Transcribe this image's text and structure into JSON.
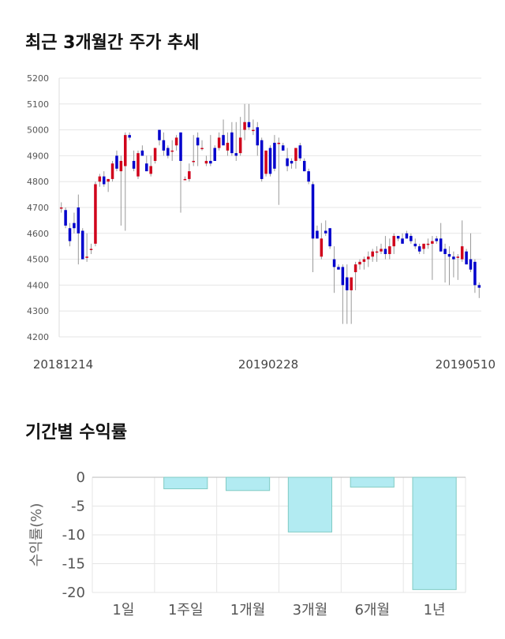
{
  "section1": {
    "title": "최근 3개월간 주가 추세"
  },
  "section2": {
    "title": "기간별 수익률"
  },
  "chart_data": [
    {
      "type": "candlestick",
      "ylim": [
        4200,
        5200
      ],
      "yticks": [
        4200,
        4300,
        4400,
        4500,
        4600,
        4700,
        4800,
        4900,
        5000,
        5100,
        5200
      ],
      "xtick_labels": [
        "20181214",
        "20190228",
        "20190510"
      ],
      "grid": true,
      "colors": {
        "up": "#d0021b",
        "down": "#0000cc",
        "wick": "#999999"
      },
      "candles": [
        [
          4700,
          4720,
          4680,
          4700
        ],
        [
          4690,
          4700,
          4620,
          4630
        ],
        [
          4620,
          4640,
          4550,
          4570
        ],
        [
          4640,
          4680,
          4600,
          4620
        ],
        [
          4700,
          4750,
          4480,
          4600
        ],
        [
          4610,
          4620,
          4500,
          4500
        ],
        [
          4510,
          4600,
          4490,
          4510
        ],
        [
          4540,
          4560,
          4520,
          4540
        ],
        [
          4560,
          4800,
          4550,
          4790
        ],
        [
          4800,
          4830,
          4780,
          4820
        ],
        [
          4820,
          4840,
          4780,
          4790
        ],
        [
          4800,
          4810,
          4760,
          4810
        ],
        [
          4810,
          4880,
          4800,
          4870
        ],
        [
          4900,
          4920,
          4840,
          4850
        ],
        [
          4840,
          4900,
          4630,
          4880
        ],
        [
          4860,
          4990,
          4610,
          4980
        ],
        [
          4980,
          4990,
          4960,
          4970
        ],
        [
          4880,
          4920,
          4840,
          4850
        ],
        [
          4820,
          4920,
          4810,
          4910
        ],
        [
          4920,
          4940,
          4900,
          4900
        ],
        [
          4870,
          4900,
          4840,
          4840
        ],
        [
          4830,
          4900,
          4820,
          4860
        ],
        [
          4880,
          4930,
          4870,
          4930
        ],
        [
          5000,
          5000,
          4940,
          4960
        ],
        [
          4960,
          4990,
          4900,
          4920
        ],
        [
          4930,
          4940,
          4890,
          4900
        ],
        [
          4920,
          4960,
          4880,
          4920
        ],
        [
          4940,
          4980,
          4920,
          4970
        ],
        [
          4990,
          4990,
          4680,
          4880
        ],
        [
          4810,
          4820,
          4810,
          4810
        ],
        [
          4810,
          4870,
          4800,
          4840
        ],
        [
          4880,
          4980,
          4860,
          4880
        ],
        [
          4970,
          4990,
          4860,
          4940
        ],
        [
          4930,
          4960,
          4920,
          4930
        ],
        [
          4870,
          4900,
          4860,
          4880
        ],
        [
          4880,
          4980,
          4860,
          4870
        ],
        [
          4930,
          4940,
          4880,
          4880
        ],
        [
          4930,
          4990,
          4920,
          4970
        ],
        [
          4980,
          5040,
          4950,
          4940
        ],
        [
          4920,
          4990,
          4900,
          4950
        ],
        [
          4990,
          5030,
          4900,
          4910
        ],
        [
          4910,
          5030,
          4880,
          4900
        ],
        [
          4910,
          5050,
          4900,
          4970
        ],
        [
          5000,
          5100,
          4960,
          5030
        ],
        [
          5030,
          5100,
          5000,
          5010
        ],
        [
          5000,
          5040,
          4980,
          5000
        ],
        [
          5010,
          5030,
          4900,
          4940
        ],
        [
          4960,
          4970,
          4800,
          4810
        ],
        [
          4830,
          4910,
          4820,
          4920
        ],
        [
          4930,
          4940,
          4820,
          4830
        ],
        [
          4950,
          4980,
          4840,
          4850
        ],
        [
          4950,
          4970,
          4710,
          4950
        ],
        [
          4940,
          4950,
          4920,
          4920
        ],
        [
          4890,
          4930,
          4840,
          4860
        ],
        [
          4880,
          4890,
          4850,
          4870
        ],
        [
          4880,
          4920,
          4850,
          4930
        ],
        [
          4940,
          4950,
          4880,
          4890
        ],
        [
          4880,
          4890,
          4840,
          4840
        ],
        [
          4840,
          4850,
          4790,
          4800
        ],
        [
          4790,
          4800,
          4450,
          4580
        ],
        [
          4610,
          4630,
          4580,
          4580
        ],
        [
          4510,
          4640,
          4500,
          4580
        ],
        [
          4610,
          4650,
          4590,
          4600
        ],
        [
          4620,
          4620,
          4540,
          4550
        ],
        [
          4500,
          4550,
          4370,
          4470
        ],
        [
          4470,
          4480,
          4460,
          4460
        ],
        [
          4470,
          4480,
          4250,
          4400
        ],
        [
          4430,
          4480,
          4250,
          4380
        ],
        [
          4380,
          4420,
          4250,
          4430
        ],
        [
          4450,
          4490,
          4380,
          4480
        ],
        [
          4480,
          4500,
          4460,
          4490
        ],
        [
          4490,
          4510,
          4460,
          4500
        ],
        [
          4500,
          4530,
          4470,
          4510
        ],
        [
          4510,
          4540,
          4490,
          4530
        ],
        [
          4530,
          4550,
          4490,
          4530
        ],
        [
          4530,
          4560,
          4520,
          4540
        ],
        [
          4540,
          4590,
          4500,
          4520
        ],
        [
          4520,
          4580,
          4500,
          4550
        ],
        [
          4550,
          4600,
          4520,
          4590
        ],
        [
          4590,
          4590,
          4570,
          4580
        ],
        [
          4580,
          4600,
          4560,
          4560
        ],
        [
          4600,
          4610,
          4580,
          4580
        ],
        [
          4590,
          4600,
          4560,
          4570
        ],
        [
          4560,
          4580,
          4540,
          4550
        ],
        [
          4550,
          4560,
          4520,
          4530
        ],
        [
          4540,
          4560,
          4520,
          4560
        ],
        [
          4560,
          4580,
          4540,
          4560
        ],
        [
          4560,
          4590,
          4420,
          4570
        ],
        [
          4580,
          4590,
          4560,
          4570
        ],
        [
          4580,
          4640,
          4530,
          4530
        ],
        [
          4540,
          4560,
          4410,
          4520
        ],
        [
          4520,
          4550,
          4400,
          4510
        ],
        [
          4510,
          4530,
          4430,
          4500
        ],
        [
          4510,
          4520,
          4420,
          4510
        ],
        [
          4500,
          4650,
          4490,
          4550
        ],
        [
          4530,
          4540,
          4490,
          4480
        ],
        [
          4500,
          4600,
          4450,
          4460
        ],
        [
          4490,
          4500,
          4370,
          4400
        ],
        [
          4400,
          4410,
          4350,
          4390
        ]
      ]
    },
    {
      "type": "bar",
      "categories": [
        "1일",
        "1주일",
        "1개월",
        "3개월",
        "6개월",
        "1년"
      ],
      "values": [
        0,
        -2.0,
        -2.3,
        -9.5,
        -1.7,
        -19.5
      ],
      "ylabel": "수익률(%)",
      "ylim": [
        -20,
        0
      ],
      "yticks": [
        0,
        -5,
        -10,
        -15,
        -20
      ],
      "grid": true,
      "colors": {
        "bar": "#b2ebf2",
        "bar_edge": "#80cbc4"
      }
    }
  ]
}
